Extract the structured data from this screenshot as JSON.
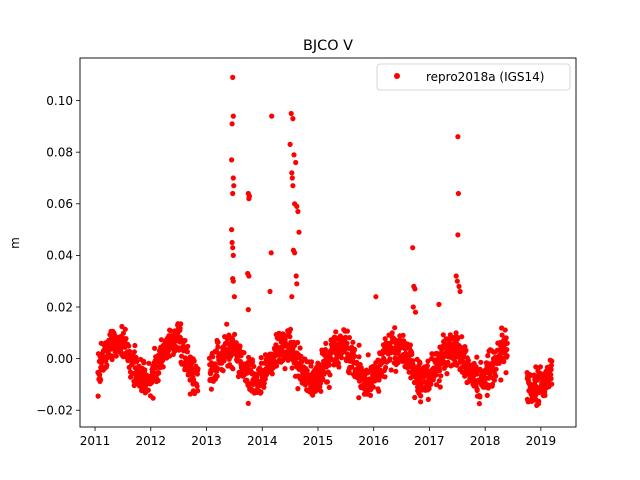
{
  "chart_data": {
    "type": "scatter",
    "title": "BJCO V",
    "xlabel": "",
    "ylabel": "m",
    "xlim": [
      2010.73,
      2019.63
    ],
    "ylim": [
      -0.0265,
      0.1165
    ],
    "xticks": [
      "2011",
      "2012",
      "2013",
      "2014",
      "2015",
      "2016",
      "2017",
      "2018",
      "2019"
    ],
    "yticks": [
      "−0.02",
      "0.00",
      "0.02",
      "0.04",
      "0.06",
      "0.08",
      "0.10"
    ],
    "grid": false,
    "legend_position": "top-right",
    "series": [
      {
        "name": "repro2018a (IGS14)",
        "color": "#ff0000",
        "marker": "circle",
        "segments": [
          {
            "start": 2011.05,
            "end": 2012.85,
            "center": -0.001,
            "amplitude": 0.0075,
            "phase": 0.15,
            "noise": 0.0035,
            "n": 420
          },
          {
            "start": 2013.05,
            "end": 2018.4,
            "center": -0.002,
            "amplitude": 0.0065,
            "phase": 0.15,
            "noise": 0.0035,
            "n": 1250
          },
          {
            "start": 2018.75,
            "end": 2019.2,
            "center": -0.006,
            "amplitude": 0.0055,
            "phase": 0.15,
            "noise": 0.0035,
            "n": 110
          }
        ],
        "outliers": [
          [
            2013.47,
            0.109
          ],
          [
            2013.48,
            0.094
          ],
          [
            2013.46,
            0.091
          ],
          [
            2013.45,
            0.077
          ],
          [
            2013.48,
            0.07
          ],
          [
            2013.49,
            0.067
          ],
          [
            2013.47,
            0.064
          ],
          [
            2013.45,
            0.05
          ],
          [
            2013.46,
            0.045
          ],
          [
            2013.47,
            0.043
          ],
          [
            2013.48,
            0.04
          ],
          [
            2013.47,
            0.031
          ],
          [
            2013.48,
            0.03
          ],
          [
            2013.5,
            0.024
          ],
          [
            2013.46,
            0.008
          ],
          [
            2013.75,
            0.064
          ],
          [
            2013.77,
            0.063
          ],
          [
            2013.76,
            0.062
          ],
          [
            2013.74,
            0.033
          ],
          [
            2013.76,
            0.032
          ],
          [
            2013.75,
            0.019
          ],
          [
            2014.17,
            0.094
          ],
          [
            2014.16,
            0.041
          ],
          [
            2014.14,
            0.026
          ],
          [
            2014.52,
            0.095
          ],
          [
            2014.55,
            0.093
          ],
          [
            2014.5,
            0.083
          ],
          [
            2014.57,
            0.079
          ],
          [
            2014.6,
            0.076
          ],
          [
            2014.53,
            0.072
          ],
          [
            2014.54,
            0.07
          ],
          [
            2014.55,
            0.067
          ],
          [
            2014.58,
            0.06
          ],
          [
            2014.62,
            0.059
          ],
          [
            2014.64,
            0.057
          ],
          [
            2014.66,
            0.049
          ],
          [
            2014.56,
            0.042
          ],
          [
            2014.58,
            0.041
          ],
          [
            2014.61,
            0.032
          ],
          [
            2014.62,
            0.029
          ],
          [
            2014.53,
            0.024
          ],
          [
            2016.7,
            0.043
          ],
          [
            2016.72,
            0.028
          ],
          [
            2016.74,
            0.027
          ],
          [
            2016.71,
            0.02
          ],
          [
            2016.75,
            0.018
          ],
          [
            2017.51,
            0.086
          ],
          [
            2017.52,
            0.064
          ],
          [
            2017.51,
            0.048
          ],
          [
            2017.48,
            0.032
          ],
          [
            2017.5,
            0.03
          ],
          [
            2017.53,
            0.028
          ],
          [
            2017.55,
            0.026
          ],
          [
            2016.04,
            0.024
          ],
          [
            2017.17,
            0.021
          ]
        ]
      }
    ]
  }
}
